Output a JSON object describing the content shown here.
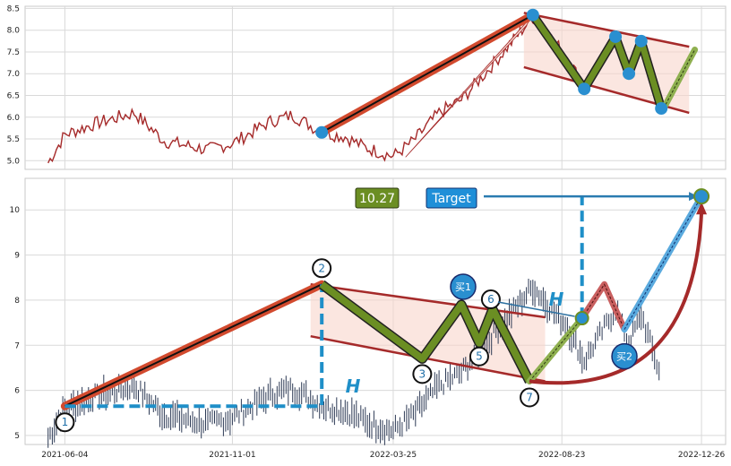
{
  "colors": {
    "upper_price": "#a52a2a",
    "lower_price": "#2d3a55",
    "channel_fill": "#f9d5cc",
    "channel_line": "#a52a2a",
    "trend_outer": "#d24a2e",
    "zigzag_outer": "#6b8e23",
    "dashed": "#1f8fc8",
    "marker": "#2a8fd0",
    "price_box": "#6b8e23",
    "target_box": "#1f8fd8"
  },
  "chart_data": [
    {
      "type": "line",
      "name": "upper-price-panel",
      "ylim": [
        4.8,
        8.55
      ],
      "yticks": [
        5.0,
        5.5,
        6.0,
        6.5,
        7.0,
        7.5,
        8.0,
        8.5
      ],
      "trend_line": {
        "start": [
          "2022-01-20",
          5.65
        ],
        "end": [
          "2022-07-28",
          8.35
        ]
      },
      "zigzag": [
        [
          "2022-07-28",
          8.35
        ],
        [
          "2022-09-12",
          6.65
        ],
        [
          "2022-10-10",
          7.85
        ],
        [
          "2022-10-22",
          7.0
        ],
        [
          "2022-11-02",
          7.75
        ],
        [
          "2022-11-20",
          6.2
        ]
      ],
      "projection": [
        [
          "2022-11-22",
          6.2
        ],
        [
          "2022-12-20",
          7.55
        ]
      ],
      "channel": {
        "top": [
          [
            "2022-07-20",
            8.4
          ],
          [
            "2022-12-15",
            7.62
          ]
        ],
        "bottom": [
          [
            "2022-07-20",
            7.15
          ],
          [
            "2022-12-15",
            6.1
          ]
        ]
      },
      "markers": [
        [
          "2022-01-20",
          5.65
        ],
        [
          "2022-07-28",
          8.35
        ],
        [
          "2022-09-12",
          6.65
        ],
        [
          "2022-10-10",
          7.85
        ],
        [
          "2022-10-22",
          7.0
        ],
        [
          "2022-11-02",
          7.75
        ],
        [
          "2022-11-20",
          6.2
        ]
      ]
    },
    {
      "type": "line",
      "name": "lower-price-panel",
      "ylim": [
        4.8,
        10.7
      ],
      "yticks": [
        5,
        6,
        7,
        8,
        9,
        10
      ],
      "xlim": [
        "2021-05-01",
        "2023-01-15"
      ],
      "xticks": [
        "2021-06-04",
        "2021-11-01",
        "2022-03-25",
        "2022-08-23",
        "2022-12-26"
      ],
      "trend_line": {
        "start": [
          "2021-06-04",
          5.65
        ],
        "end": [
          "2022-01-20",
          8.35
        ]
      },
      "zigzag": [
        [
          "2022-01-20",
          8.35
        ],
        [
          "2022-04-20",
          6.7
        ],
        [
          "2022-05-25",
          7.9
        ],
        [
          "2022-06-10",
          7.05
        ],
        [
          "2022-06-22",
          7.8
        ],
        [
          "2022-07-25",
          6.2
        ]
      ],
      "channel": {
        "top": [
          [
            "2022-01-10",
            8.35
          ],
          [
            "2022-08-08",
            7.62
          ]
        ],
        "bottom": [
          [
            "2022-01-10",
            7.2
          ],
          [
            "2022-08-08",
            6.2
          ]
        ]
      },
      "height_lines": [
        {
          "x": "2022-01-20",
          "y_from": 5.65,
          "y_to": 8.35,
          "h_from": "2021-06-04"
        },
        {
          "x": "2022-09-10",
          "y_from": 7.6,
          "y_to": 10.3,
          "h_to": "2022-12-26"
        }
      ],
      "breakout": [
        [
          "2022-07-25",
          6.2
        ],
        [
          "2022-09-10",
          7.6
        ]
      ],
      "pullback": [
        [
          "2022-09-10",
          7.6
        ],
        [
          "2022-09-30",
          8.35
        ],
        [
          "2022-10-18",
          7.35
        ]
      ],
      "target_path": [
        [
          "2022-10-18",
          7.35
        ],
        [
          "2022-12-26",
          10.3
        ]
      ],
      "target_curve": [
        [
          "2022-07-25",
          6.2
        ],
        [
          "2022-12-26",
          10.1
        ]
      ],
      "target_value": 10.3,
      "points": [
        {
          "label": "1",
          "x": "2021-06-04",
          "y": 5.65
        },
        {
          "label": "2",
          "x": "2022-01-20",
          "y": 8.35
        },
        {
          "label": "3",
          "x": "2022-04-20",
          "y": 6.7
        },
        {
          "label": "5",
          "x": "2022-06-10",
          "y": 7.05
        },
        {
          "label": "6",
          "x": "2022-06-22",
          "y": 7.8
        },
        {
          "label": "7",
          "x": "2022-07-25",
          "y": 6.2
        }
      ],
      "buy_points": [
        {
          "label": "买1",
          "x": "2022-05-25",
          "y": 7.9
        },
        {
          "label": "买2",
          "x": "2022-10-18",
          "y": 7.35
        }
      ]
    }
  ],
  "labels": {
    "price_value": "10.27",
    "target_label": "Target",
    "height_symbol": "H"
  }
}
